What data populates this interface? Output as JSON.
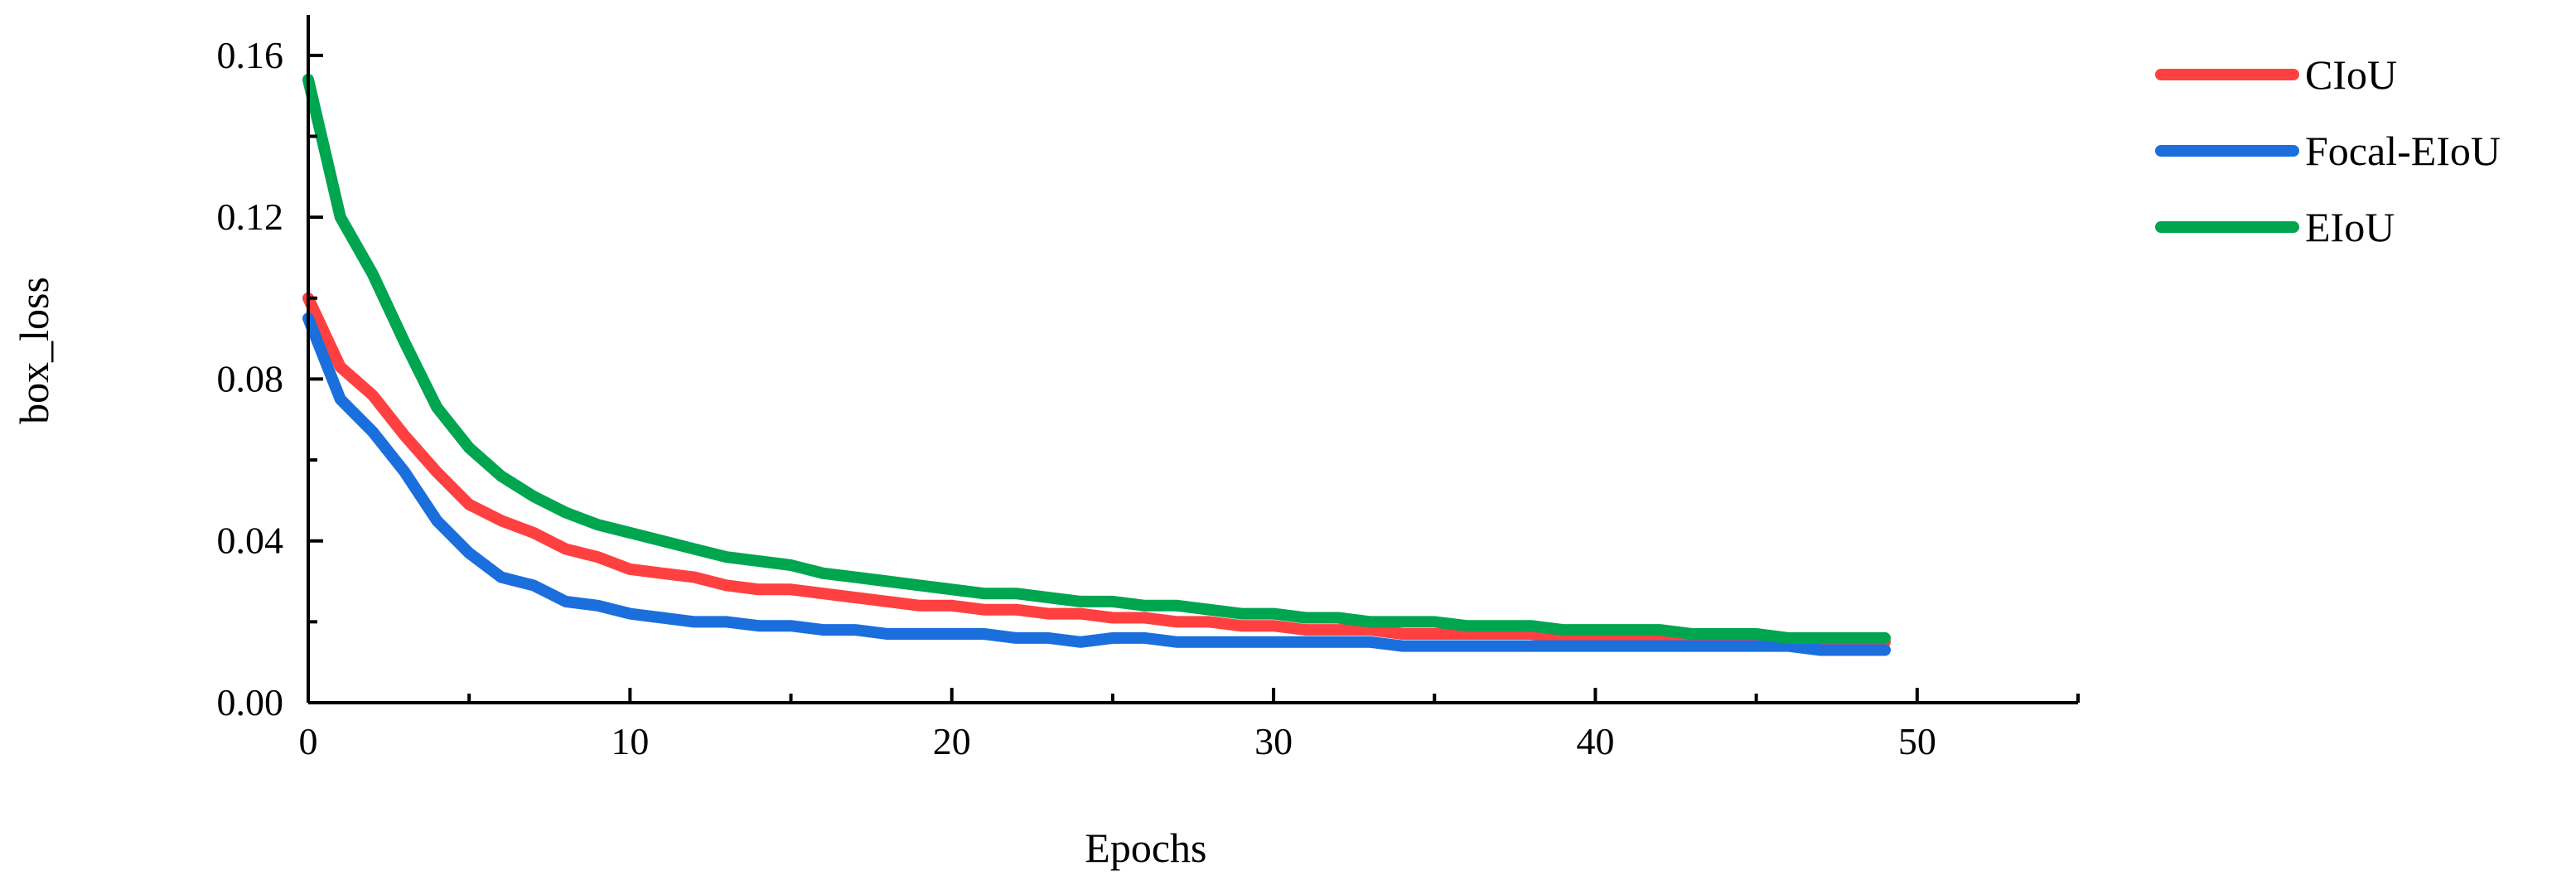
{
  "chart_data": {
    "type": "line",
    "title": "",
    "xlabel": "Epochs",
    "ylabel": "box_loss",
    "xlim": [
      0,
      55
    ],
    "ylim": [
      0,
      0.17
    ],
    "x_ticks": [
      "0",
      "10",
      "20",
      "30",
      "40",
      "50"
    ],
    "y_ticks": [
      "0.00",
      "0.04",
      "0.08",
      "0.12",
      "0.16"
    ],
    "legend_position": "top-right",
    "x": [
      0,
      1,
      2,
      3,
      4,
      5,
      6,
      7,
      8,
      9,
      10,
      11,
      12,
      13,
      14,
      15,
      16,
      17,
      18,
      19,
      20,
      21,
      22,
      23,
      24,
      25,
      26,
      27,
      28,
      29,
      30,
      31,
      32,
      33,
      34,
      35,
      36,
      37,
      38,
      39,
      40,
      41,
      42,
      43,
      44,
      45,
      46,
      47,
      48,
      49
    ],
    "series": [
      {
        "name": "CIoU",
        "color": "#ff4040",
        "values": [
          0.1,
          0.083,
          0.076,
          0.066,
          0.057,
          0.049,
          0.045,
          0.042,
          0.038,
          0.036,
          0.033,
          0.032,
          0.031,
          0.029,
          0.028,
          0.028,
          0.027,
          0.026,
          0.025,
          0.024,
          0.024,
          0.023,
          0.023,
          0.022,
          0.022,
          0.021,
          0.021,
          0.02,
          0.02,
          0.019,
          0.019,
          0.018,
          0.018,
          0.018,
          0.017,
          0.017,
          0.017,
          0.017,
          0.017,
          0.016,
          0.016,
          0.016,
          0.016,
          0.016,
          0.016,
          0.016,
          0.015,
          0.015,
          0.015,
          0.015
        ]
      },
      {
        "name": "Focal-EIoU",
        "color": "#1a6fdc",
        "values": [
          0.095,
          0.075,
          0.067,
          0.057,
          0.045,
          0.037,
          0.031,
          0.029,
          0.025,
          0.024,
          0.022,
          0.021,
          0.02,
          0.02,
          0.019,
          0.019,
          0.018,
          0.018,
          0.017,
          0.017,
          0.017,
          0.017,
          0.016,
          0.016,
          0.015,
          0.016,
          0.016,
          0.015,
          0.015,
          0.015,
          0.015,
          0.015,
          0.015,
          0.015,
          0.014,
          0.014,
          0.014,
          0.014,
          0.014,
          0.014,
          0.014,
          0.014,
          0.014,
          0.014,
          0.014,
          0.014,
          0.014,
          0.013,
          0.013,
          0.013
        ]
      },
      {
        "name": "EIoU",
        "color": "#00a550",
        "values": [
          0.154,
          0.12,
          0.106,
          0.089,
          0.073,
          0.063,
          0.056,
          0.051,
          0.047,
          0.044,
          0.042,
          0.04,
          0.038,
          0.036,
          0.035,
          0.034,
          0.032,
          0.031,
          0.03,
          0.029,
          0.028,
          0.027,
          0.027,
          0.026,
          0.025,
          0.025,
          0.024,
          0.024,
          0.023,
          0.022,
          0.022,
          0.021,
          0.021,
          0.02,
          0.02,
          0.02,
          0.019,
          0.019,
          0.019,
          0.018,
          0.018,
          0.018,
          0.018,
          0.017,
          0.017,
          0.017,
          0.016,
          0.016,
          0.016,
          0.016
        ]
      }
    ]
  }
}
